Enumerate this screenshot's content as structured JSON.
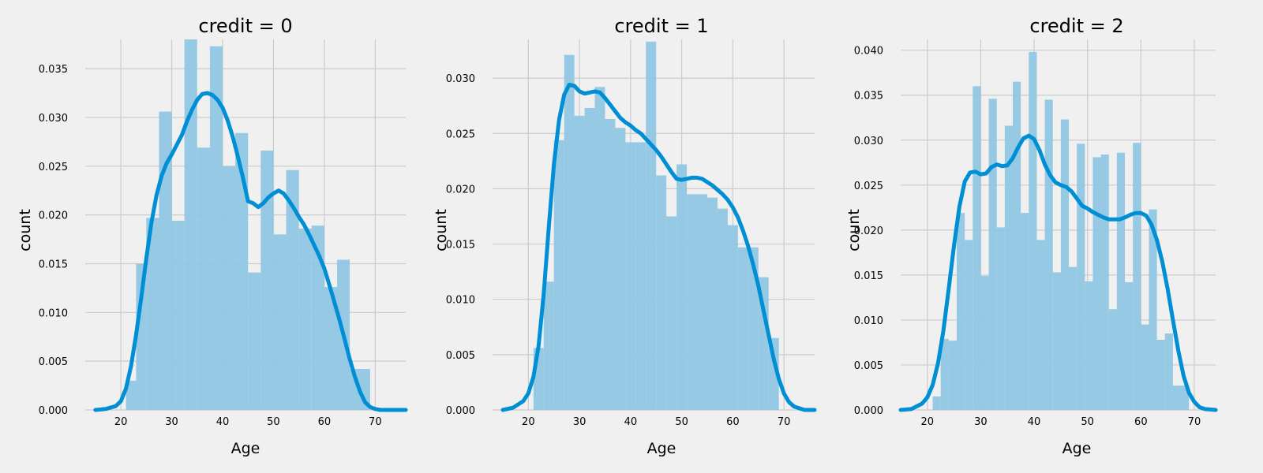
{
  "colors": {
    "background": "#f0f0f0",
    "grid": "#cbcbcb",
    "kde": "#008fd5",
    "bars": "#8fc6e3"
  },
  "chart_data": [
    {
      "type": "histogram+kde",
      "title": "credit = 0",
      "xlabel": "Age",
      "ylabel": "count",
      "xlim": [
        13,
        76
      ],
      "ylim": [
        0,
        0.038
      ],
      "xticks": [
        20,
        30,
        40,
        50,
        60,
        70
      ],
      "xtick_labels": [
        "20",
        "30",
        "40",
        "50",
        "60",
        "70"
      ],
      "yticks": [
        0,
        0.005,
        0.01,
        0.015,
        0.02,
        0.025,
        0.03,
        0.035
      ],
      "ytick_labels": [
        "0.000",
        "0.005",
        "0.010",
        "0.015",
        "0.020",
        "0.025",
        "0.030",
        "0.035"
      ],
      "bin_edges": [
        21,
        23,
        25,
        27.5,
        30,
        32.5,
        35,
        37.5,
        40,
        42.5,
        45,
        47.5,
        50,
        52.5,
        55,
        57.5,
        60,
        62.5,
        65,
        67,
        69
      ],
      "densities": [
        0.003,
        0.015,
        0.0197,
        0.0306,
        0.0194,
        0.038,
        0.0269,
        0.0373,
        0.025,
        0.0284,
        0.0141,
        0.0266,
        0.018,
        0.0246,
        0.0186,
        0.0189,
        0.0126,
        0.0154,
        0.0042,
        0.0042
      ],
      "kde_x": [
        15,
        17,
        19,
        20,
        21,
        22,
        23,
        24,
        25,
        26,
        27,
        28,
        29,
        30,
        31,
        32,
        33,
        34,
        35,
        36,
        37,
        38,
        39,
        40,
        41,
        42,
        43,
        44,
        45,
        46,
        47,
        48,
        49,
        50,
        51,
        52,
        53,
        54,
        55,
        56,
        57,
        58,
        59,
        60,
        61,
        62,
        63,
        64,
        65,
        66,
        67,
        68,
        69,
        70,
        71,
        72,
        74,
        76
      ],
      "kde_y": [
        0.0,
        0.0001,
        0.0004,
        0.0009,
        0.0022,
        0.0045,
        0.0077,
        0.0115,
        0.0155,
        0.0192,
        0.022,
        0.024,
        0.0253,
        0.0262,
        0.0272,
        0.0282,
        0.0296,
        0.0308,
        0.0318,
        0.0324,
        0.0325,
        0.0323,
        0.0318,
        0.031,
        0.0297,
        0.028,
        0.026,
        0.0238,
        0.0214,
        0.0212,
        0.0208,
        0.0212,
        0.0218,
        0.0222,
        0.0225,
        0.0222,
        0.0215,
        0.0207,
        0.0198,
        0.019,
        0.018,
        0.0169,
        0.0158,
        0.0145,
        0.0128,
        0.011,
        0.0092,
        0.0072,
        0.0052,
        0.0034,
        0.0019,
        0.0008,
        0.0003,
        0.0001,
        0.0,
        0.0,
        0.0,
        0.0
      ]
    },
    {
      "type": "histogram+kde",
      "title": "credit = 1",
      "xlabel": "Age",
      "ylabel": "count",
      "xlim": [
        13,
        76
      ],
      "ylim": [
        0,
        0.0335
      ],
      "xticks": [
        20,
        30,
        40,
        50,
        60,
        70
      ],
      "xtick_labels": [
        "20",
        "30",
        "40",
        "50",
        "60",
        "70"
      ],
      "yticks": [
        0,
        0.005,
        0.01,
        0.015,
        0.02,
        0.025,
        0.03
      ],
      "ytick_labels": [
        "0.000",
        "0.005",
        "0.010",
        "0.015",
        "0.020",
        "0.025",
        "0.030"
      ],
      "bin_edges": [
        21,
        23,
        25,
        27,
        29,
        31,
        33,
        35,
        37,
        39,
        41,
        43,
        45,
        47,
        49,
        51,
        53,
        55,
        57,
        59,
        61,
        63,
        65,
        67,
        69
      ],
      "densities": [
        0.0056,
        0.0116,
        0.0244,
        0.0321,
        0.0266,
        0.0273,
        0.0292,
        0.0263,
        0.0255,
        0.0242,
        0.0242,
        0.0333,
        0.0212,
        0.0175,
        0.0222,
        0.0195,
        0.0195,
        0.0192,
        0.0182,
        0.0167,
        0.0147,
        0.0147,
        0.012,
        0.0065
      ],
      "kde_x": [
        15,
        17,
        19,
        20,
        21,
        22,
        23,
        24,
        25,
        26,
        27,
        28,
        29,
        30,
        31,
        32,
        33,
        34,
        35,
        36,
        37,
        38,
        39,
        40,
        41,
        42,
        43,
        44,
        45,
        46,
        47,
        48,
        49,
        50,
        51,
        52,
        53,
        54,
        55,
        56,
        57,
        58,
        59,
        60,
        61,
        62,
        63,
        64,
        65,
        66,
        67,
        68,
        69,
        70,
        71,
        72,
        74,
        76
      ],
      "kde_y": [
        0.0,
        0.0002,
        0.0008,
        0.0015,
        0.003,
        0.0058,
        0.0105,
        0.0165,
        0.0222,
        0.0262,
        0.0285,
        0.0294,
        0.0293,
        0.0288,
        0.0286,
        0.0287,
        0.0288,
        0.0287,
        0.0282,
        0.0276,
        0.027,
        0.0264,
        0.026,
        0.0257,
        0.0253,
        0.025,
        0.0245,
        0.024,
        0.0235,
        0.0229,
        0.0222,
        0.0215,
        0.0209,
        0.0208,
        0.0209,
        0.021,
        0.021,
        0.0209,
        0.0206,
        0.0203,
        0.0199,
        0.0195,
        0.019,
        0.0183,
        0.0174,
        0.0162,
        0.0148,
        0.0131,
        0.0112,
        0.009,
        0.0068,
        0.0046,
        0.0028,
        0.0015,
        0.0007,
        0.0003,
        0.0,
        0.0
      ]
    },
    {
      "type": "histogram+kde",
      "title": "credit = 2",
      "xlabel": "Age",
      "ylabel": "count",
      "xlim": [
        15,
        74
      ],
      "ylim": [
        0,
        0.0412
      ],
      "xticks": [
        20,
        30,
        40,
        50,
        60,
        70
      ],
      "xtick_labels": [
        "20",
        "30",
        "40",
        "50",
        "60",
        "70"
      ],
      "yticks": [
        0,
        0.005,
        0.01,
        0.015,
        0.02,
        0.025,
        0.03,
        0.035,
        0.04
      ],
      "ytick_labels": [
        "0.000",
        "0.005",
        "0.010",
        "0.015",
        "0.020",
        "0.025",
        "0.030",
        "0.035",
        "0.040"
      ],
      "bin_edges": [
        21,
        22.5,
        24,
        25.5,
        27,
        28.5,
        30,
        31.5,
        33,
        34.5,
        36,
        37.5,
        39,
        40.5,
        42,
        43.5,
        45,
        46.5,
        48,
        49.5,
        51,
        52.5,
        54,
        55.5,
        57,
        58.5,
        60,
        61.5,
        63,
        64.5,
        66,
        67.5,
        69
      ],
      "densities": [
        0.0015,
        0.0079,
        0.0077,
        0.0219,
        0.0189,
        0.036,
        0.0149,
        0.0346,
        0.0203,
        0.0316,
        0.0365,
        0.0219,
        0.0398,
        0.0189,
        0.0345,
        0.0153,
        0.0323,
        0.0159,
        0.0296,
        0.0143,
        0.0281,
        0.0284,
        0.0112,
        0.0286,
        0.0142,
        0.0297,
        0.0095,
        0.0223,
        0.0078,
        0.0085,
        0.0027,
        0.0027
      ],
      "kde_x": [
        15,
        17,
        19,
        20,
        21,
        22,
        23,
        24,
        25,
        26,
        27,
        28,
        29,
        30,
        31,
        32,
        33,
        34,
        35,
        36,
        37,
        38,
        39,
        40,
        41,
        42,
        43,
        44,
        45,
        46,
        47,
        48,
        49,
        50,
        51,
        52,
        53,
        54,
        55,
        56,
        57,
        58,
        59,
        60,
        61,
        62,
        63,
        64,
        65,
        66,
        67,
        68,
        69,
        70,
        71,
        72,
        74
      ],
      "kde_y": [
        0.0,
        0.0001,
        0.0007,
        0.0014,
        0.0028,
        0.0052,
        0.0088,
        0.0135,
        0.0183,
        0.0226,
        0.0254,
        0.0264,
        0.0265,
        0.0262,
        0.0263,
        0.027,
        0.0273,
        0.0271,
        0.0272,
        0.028,
        0.0292,
        0.0302,
        0.0305,
        0.0301,
        0.0289,
        0.0273,
        0.0261,
        0.0253,
        0.025,
        0.0248,
        0.0243,
        0.0235,
        0.0227,
        0.0224,
        0.022,
        0.0217,
        0.0214,
        0.0212,
        0.0212,
        0.0212,
        0.0214,
        0.0217,
        0.0219,
        0.0219,
        0.0216,
        0.0206,
        0.0189,
        0.0165,
        0.0135,
        0.01,
        0.0066,
        0.0038,
        0.0019,
        0.0009,
        0.0003,
        0.0001,
        0.0
      ]
    }
  ]
}
